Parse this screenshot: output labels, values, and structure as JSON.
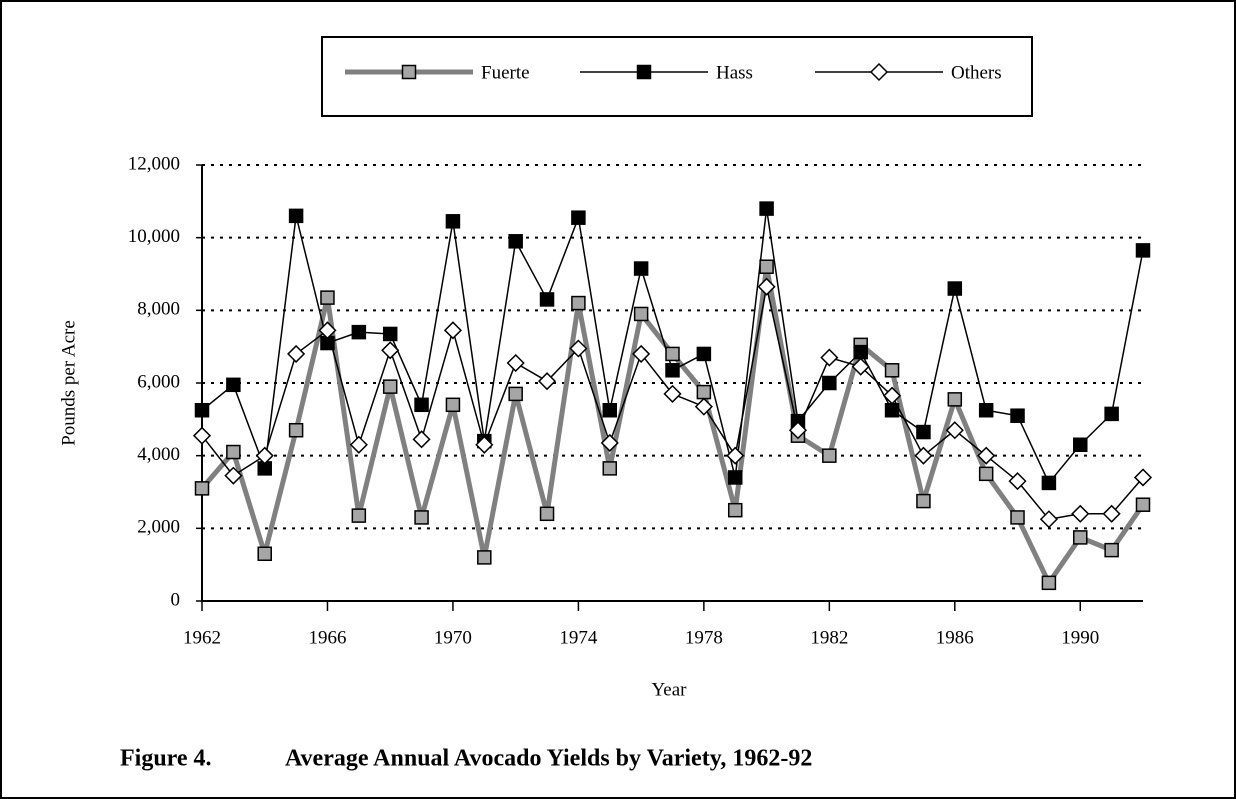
{
  "chart_data": {
    "type": "line",
    "figure_label": "Figure 4.",
    "title": "Average Annual Avocado Yields by Variety, 1962-92",
    "xlabel": "Year",
    "ylabel": "Pounds per Acre",
    "x": [
      1962,
      1963,
      1964,
      1965,
      1966,
      1967,
      1968,
      1969,
      1970,
      1971,
      1972,
      1973,
      1974,
      1975,
      1976,
      1977,
      1978,
      1979,
      1980,
      1981,
      1982,
      1983,
      1984,
      1985,
      1986,
      1987,
      1988,
      1989,
      1990,
      1991,
      1992
    ],
    "series": [
      {
        "name": "Fuerte",
        "color": "#808080",
        "marker": "square",
        "marker_fill": "#a6a6a6",
        "line_width": 5,
        "values": [
          3100,
          4100,
          1300,
          4700,
          8350,
          2350,
          5900,
          2300,
          5400,
          1200,
          5700,
          2400,
          8200,
          3650,
          7900,
          6800,
          5750,
          2500,
          9200,
          4550,
          4000,
          7050,
          6350,
          2750,
          5550,
          3500,
          2300,
          500,
          1750,
          1400,
          2650
        ]
      },
      {
        "name": "Hass",
        "color": "#000000",
        "marker": "square",
        "marker_fill": "#000000",
        "line_width": 1.5,
        "values": [
          5250,
          5950,
          3650,
          10600,
          7100,
          7400,
          7350,
          5400,
          10450,
          4400,
          9900,
          8300,
          10550,
          5250,
          9150,
          6350,
          6800,
          3400,
          10800,
          4950,
          6000,
          6850,
          5250,
          4650,
          8600,
          5250,
          5100,
          3250,
          4300,
          5150,
          9650
        ]
      },
      {
        "name": "Others",
        "color": "#000000",
        "marker": "diamond",
        "marker_fill": "#ffffff",
        "line_width": 1.5,
        "values": [
          4550,
          3450,
          4000,
          6800,
          7450,
          4300,
          6900,
          4450,
          7450,
          4300,
          6550,
          6050,
          6950,
          4350,
          6800,
          5700,
          5350,
          4000,
          8650,
          4700,
          6700,
          6450,
          5650,
          4000,
          4700,
          4000,
          3300,
          2250,
          2400,
          2400,
          3400
        ]
      }
    ],
    "xlim": [
      1962,
      1992
    ],
    "xticks": [
      1962,
      1966,
      1970,
      1974,
      1978,
      1982,
      1986,
      1990
    ],
    "ylim": [
      0,
      12000
    ],
    "yticks": [
      0,
      {
        "value": 2000,
        "label": "2,000"
      },
      {
        "value": 4000,
        "label": "4,000"
      },
      {
        "value": 6000,
        "label": "6,000"
      },
      {
        "value": 8000,
        "label": "8,000"
      },
      {
        "value": 10000,
        "label": "10,000"
      },
      {
        "value": 12000,
        "label": "12,000"
      }
    ],
    "grid": true,
    "legend": "top"
  }
}
